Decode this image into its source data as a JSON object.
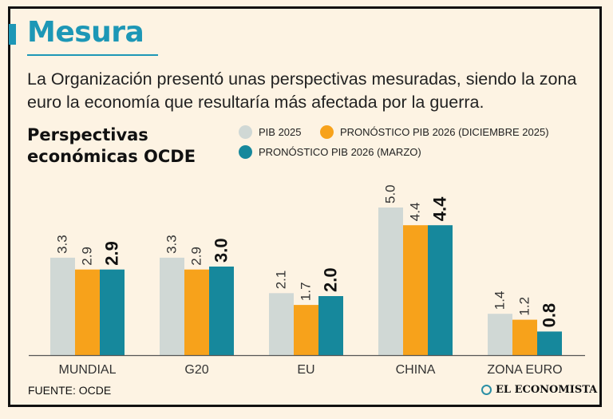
{
  "header": {
    "title": "Mesura",
    "subtitle": "La Organización presentó unas perspectivas mesuradas, siendo la zona euro la economía que resultaría más afectada por la guerra."
  },
  "colors": {
    "accent": "#1d97b6",
    "pib2025": "#d0d8d5",
    "dic2025": "#f7a21b",
    "marzo": "#16889c",
    "text": "#222222"
  },
  "chart_data": {
    "type": "bar",
    "title": "Perspectivas económicas OCDE",
    "categories": [
      "MUNDIAL",
      "G20",
      "EU",
      "CHINA",
      "ZONA EURO"
    ],
    "series": [
      {
        "name": "PIB 2025",
        "color": "#d0d8d5",
        "values": [
          3.3,
          3.3,
          2.1,
          5.0,
          1.4
        ],
        "labels": [
          "3.3",
          "3.3",
          "2.1",
          "5.0",
          "1.4"
        ],
        "bold": false
      },
      {
        "name": "PRONÓSTICO PIB 2026 (DICIEMBRE 2025)",
        "color": "#f7a21b",
        "values": [
          2.9,
          2.9,
          1.7,
          4.4,
          1.2
        ],
        "labels": [
          "2.9",
          "2.9",
          "1.7",
          "4.4",
          "1.2"
        ],
        "bold": false
      },
      {
        "name": "PRONÓSTICO PIB 2026 (MARZO)",
        "color": "#16889c",
        "values": [
          2.9,
          3.0,
          2.0,
          4.4,
          0.8
        ],
        "labels": [
          "2.9",
          "3.0",
          "2.0",
          "4.4",
          "0.8"
        ],
        "bold": true
      }
    ],
    "ylim": [
      0,
      5.2
    ],
    "xlabel": "",
    "ylabel": "",
    "grid": false,
    "legend": "top-right"
  },
  "footer": {
    "source": "FUENTE:  OCDE",
    "brand": "EL ECONOMISTA"
  }
}
